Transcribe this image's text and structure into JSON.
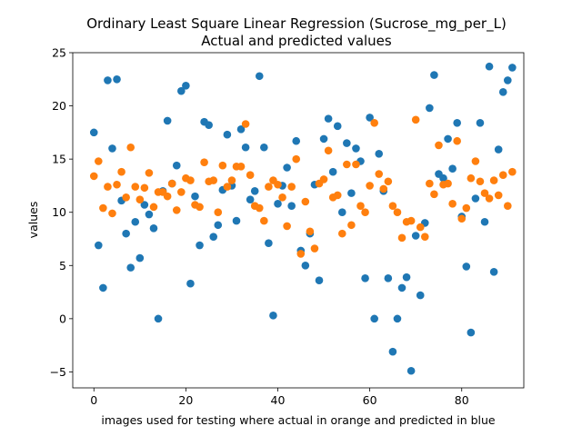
{
  "chart_data": {
    "type": "scatter",
    "title": "Ordinary Least Square Linear Regression (Sucrose_mg_per_L)",
    "subtitle": "Actual and predicted values",
    "xlabel": "images used for testing where actual in orange and predicted in blue",
    "ylabel": "values",
    "xlim": [
      -4.6,
      93.5
    ],
    "ylim": [
      -6.5,
      25.0
    ],
    "xticks": [
      0,
      20,
      40,
      60,
      80
    ],
    "yticks": [
      -5,
      0,
      5,
      10,
      15,
      20,
      25
    ],
    "xtick_labels": [
      "0",
      "20",
      "40",
      "60",
      "80"
    ],
    "ytick_labels": [
      "−5",
      "0",
      "5",
      "10",
      "15",
      "20",
      "25"
    ],
    "grid": false,
    "legend": false,
    "series": [
      {
        "color": "#1f77b4",
        "x": [
          0,
          1,
          2,
          3,
          4,
          5,
          6,
          7,
          8,
          9,
          10,
          11,
          12,
          13,
          14,
          15,
          16,
          17,
          18,
          19,
          20,
          21,
          22,
          23,
          24,
          25,
          26,
          27,
          28,
          29,
          30,
          31,
          32,
          33,
          34,
          35,
          36,
          37,
          38,
          39,
          40,
          41,
          42,
          43,
          44,
          45,
          46,
          47,
          48,
          49,
          50,
          51,
          52,
          53,
          54,
          55,
          56,
          57,
          58,
          59,
          60,
          61,
          62,
          63,
          64,
          65,
          66,
          67,
          68,
          69,
          70,
          71,
          72,
          73,
          74,
          75,
          76,
          77,
          78,
          79,
          80,
          81,
          82,
          83,
          84,
          85,
          86,
          87,
          88,
          89,
          90,
          91
        ],
        "y": [
          17.5,
          6.9,
          2.9,
          22.4,
          16.0,
          22.5,
          11.1,
          8.0,
          4.8,
          9.1,
          5.7,
          10.7,
          9.8,
          8.5,
          0.0,
          12.0,
          18.6,
          12.7,
          14.4,
          21.4,
          21.9,
          3.3,
          11.5,
          6.9,
          18.5,
          18.2,
          7.7,
          8.8,
          12.1,
          17.3,
          12.5,
          9.2,
          17.8,
          16.1,
          11.2,
          12.0,
          22.8,
          16.1,
          7.1,
          0.3,
          10.8,
          12.5,
          14.2,
          10.6,
          16.7,
          6.4,
          5.0,
          8.0,
          12.6,
          3.6,
          16.9,
          18.8,
          13.8,
          18.1,
          10.0,
          16.5,
          11.8,
          16.0,
          14.8,
          3.8,
          18.9,
          0.0,
          15.5,
          12.0,
          3.8,
          -3.1,
          0.0,
          2.9,
          3.9,
          -4.9,
          7.8,
          2.2,
          9.0,
          19.8,
          22.9,
          13.6,
          13.2,
          16.9,
          14.1,
          18.4,
          9.6,
          4.9,
          -1.3,
          11.3,
          18.4,
          9.1,
          23.7,
          4.4,
          15.9,
          21.3,
          22.4,
          23.6
        ]
      },
      {
        "color": "#ff7f0e",
        "x": [
          0,
          1,
          2,
          3,
          4,
          5,
          6,
          7,
          8,
          9,
          10,
          11,
          12,
          13,
          14,
          15,
          16,
          17,
          18,
          19,
          20,
          21,
          22,
          23,
          24,
          25,
          26,
          27,
          28,
          29,
          30,
          31,
          32,
          33,
          34,
          35,
          36,
          37,
          38,
          39,
          40,
          41,
          42,
          43,
          44,
          45,
          46,
          47,
          48,
          49,
          50,
          51,
          52,
          53,
          54,
          55,
          56,
          57,
          58,
          59,
          60,
          61,
          62,
          63,
          64,
          65,
          66,
          67,
          68,
          69,
          70,
          71,
          72,
          73,
          74,
          75,
          76,
          77,
          78,
          79,
          80,
          81,
          82,
          83,
          84,
          85,
          86,
          87,
          88,
          89,
          90,
          91
        ],
        "y": [
          13.4,
          14.8,
          10.4,
          12.4,
          9.9,
          12.6,
          13.8,
          11.4,
          16.1,
          12.4,
          11.2,
          12.3,
          13.7,
          10.5,
          11.9,
          11.9,
          11.5,
          12.7,
          10.2,
          11.9,
          13.2,
          13.0,
          10.7,
          10.5,
          14.7,
          12.9,
          13.0,
          10.0,
          14.4,
          12.4,
          13.0,
          14.3,
          14.3,
          18.3,
          13.5,
          10.6,
          10.4,
          9.2,
          12.4,
          13.0,
          12.6,
          11.4,
          8.7,
          12.4,
          15.0,
          6.1,
          11.0,
          8.2,
          6.6,
          12.7,
          13.1,
          15.8,
          11.4,
          11.6,
          8.0,
          14.5,
          8.8,
          14.5,
          10.6,
          10.0,
          12.5,
          18.4,
          13.6,
          12.2,
          12.9,
          10.6,
          10.0,
          7.6,
          9.1,
          9.2,
          18.7,
          8.6,
          7.7,
          12.7,
          11.7,
          16.3,
          12.6,
          12.7,
          10.8,
          16.7,
          9.4,
          10.4,
          13.2,
          14.8,
          12.9,
          11.8,
          11.3,
          13.0,
          11.6,
          13.5,
          10.6,
          13.8
        ]
      }
    ]
  }
}
